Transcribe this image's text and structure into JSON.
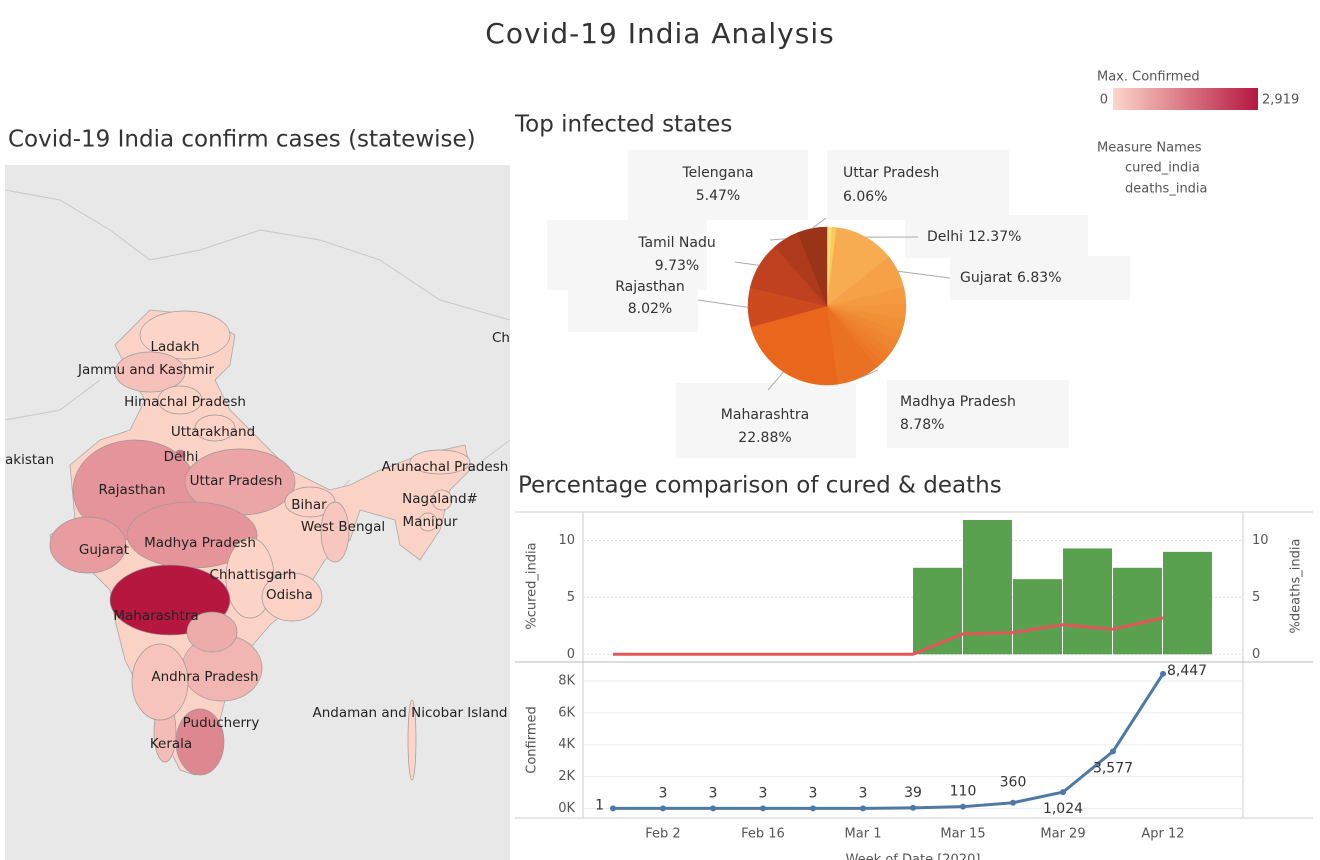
{
  "title": "Covid-19  India  Analysis",
  "chart_data": [
    {
      "type": "map",
      "title": "Covid-19 India confirm cases (statewise)",
      "categories": [
        "Ladakh",
        "Jammu and Kashmir",
        "Himachal Pradesh",
        "Uttarakhand",
        "Delhi",
        "Rajasthan",
        "Uttar Pradesh",
        "Bihar",
        "West Bengal",
        "Gujarat",
        "Madhya Pradesh",
        "Chhattisgarh",
        "Odisha",
        "Maharashtra",
        "Andhra Pradesh",
        "Puducherry",
        "Kerala",
        "Arunachal Pradesh",
        "Nagaland#",
        "Manipur",
        "Andaman and Nicobar Island",
        null,
        null,
        null
      ],
      "values": [
        15,
        300,
        35,
        40,
        1600,
        1000,
        730,
        70,
        230,
        870,
        990,
        33,
        60,
        2919,
        480,
        7,
        390,
        1,
        0,
        2,
        11,
        1200,
        650,
        260
      ],
      "legend": {
        "title": "Max. Confirmed",
        "ticks": [
          0,
          {
            "value": 2919,
            "label": "2,919"
          }
        ],
        "colors": [
          "#fdd5c9",
          "#b5173f"
        ]
      },
      "annotations": [
        "akistan",
        "Ch"
      ]
    },
    {
      "type": "pie",
      "title": "Top infected states",
      "categories": [
        null,
        null,
        "Delhi",
        "Gujarat",
        null,
        null,
        null,
        null,
        null,
        null,
        null,
        null,
        "Madhya Pradesh",
        "Maharashtra",
        "Rajasthan",
        "Tamil Nadu",
        "Telengana",
        "Uttar Pradesh"
      ],
      "values": [
        1,
        0.96,
        12.37,
        6.83,
        3.5,
        3,
        2.6,
        2.2,
        2,
        1.8,
        1.5,
        1.3,
        8.78,
        22.88,
        8.02,
        9.73,
        5.47,
        6.06
      ],
      "value_labels": [
        null,
        null,
        "12.37%",
        "6.83%",
        null,
        null,
        null,
        null,
        null,
        null,
        null,
        null,
        "8.78%",
        "22.88%",
        "8.02%",
        "9.73%",
        "5.47%",
        "6.06%"
      ],
      "colors": [
        "#fde07a",
        "#fbc95c",
        "#f7ac52",
        "#f6a148",
        "#f49b40",
        "#f3953b",
        "#f29036",
        "#f08a32",
        "#ef852e",
        "#ee802b",
        "#ed7b28",
        "#ec7625",
        "#eb7122",
        "#e8671c",
        "#cd4a1f",
        "#bf411f",
        "#ae3a1c",
        "#9a3418"
      ]
    },
    {
      "type": "bar_line",
      "title": "Percentage comparison of cured & deaths",
      "legend_title": "Measure Names",
      "ylabel": "%cured_india",
      "y2label": "%deaths_india",
      "ylim": [
        -0.5,
        12.5
      ],
      "yticks": [
        0,
        5,
        10
      ],
      "y2lim": [
        -0.5,
        12.5
      ],
      "y2ticks": [
        0,
        5,
        10
      ],
      "grid": true,
      "series": [
        {
          "name": "cured_india",
          "mark": "bar",
          "color": "#59a14f",
          "values": [
            null,
            null,
            null,
            null,
            null,
            null,
            7.6,
            11.8,
            6.6,
            9.3,
            7.6,
            9.0
          ]
        },
        {
          "name": "deaths_india",
          "mark": "line",
          "axis": "y2",
          "color": "#e15759",
          "values": [
            0,
            0,
            0,
            0,
            0,
            0,
            0,
            1.8,
            1.9,
            2.6,
            2.2,
            3.2
          ]
        }
      ]
    },
    {
      "type": "line",
      "ylabel": "Confirmed",
      "xlabel": "Week of Date [2020]",
      "color": "#4e79a7",
      "categories": [
        null,
        "Feb 2",
        null,
        "Feb 16",
        null,
        "Mar 1",
        null,
        "Mar 15",
        null,
        "Mar 29",
        null,
        "Apr 12"
      ],
      "values": [
        1,
        3,
        3,
        3,
        3,
        3,
        39,
        110,
        360,
        1024,
        3577,
        8447
      ],
      "value_labels": [
        "1",
        "3",
        "3",
        "3",
        "3",
        "3",
        "39",
        "110",
        "360",
        "1,024",
        "3,577",
        "8,447"
      ],
      "ylim": [
        -600,
        9000
      ],
      "yticks": [
        {
          "value": 0,
          "label": "0K"
        },
        {
          "value": 2000,
          "label": "2K"
        },
        {
          "value": 4000,
          "label": "4K"
        },
        {
          "value": 6000,
          "label": "6K"
        },
        {
          "value": 8000,
          "label": "8K"
        }
      ],
      "grid": true
    }
  ]
}
